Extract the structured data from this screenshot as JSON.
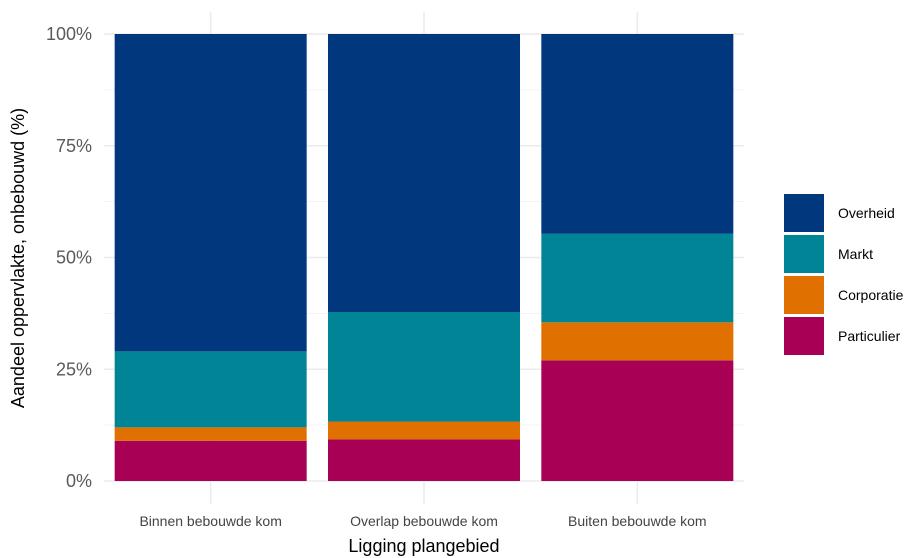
{
  "chart_data": {
    "type": "bar",
    "stacked": true,
    "percent": true,
    "categories": [
      "Binnen bebouwde kom",
      "Overlap bebouwde kom",
      "Buiten bebouwde kom"
    ],
    "series": [
      {
        "name": "Particulier",
        "color": "#a80055",
        "values": [
          9,
          9.3,
          27
        ]
      },
      {
        "name": "Corporatie",
        "color": "#e07000",
        "values": [
          3,
          4,
          8.5
        ]
      },
      {
        "name": "Markt",
        "color": "#008597",
        "values": [
          17,
          24.5,
          19.8
        ]
      },
      {
        "name": "Overheid",
        "color": "#00377d",
        "values": [
          71,
          62.2,
          44.7
        ]
      }
    ],
    "legend_order": [
      "Overheid",
      "Markt",
      "Corporatie",
      "Particulier"
    ],
    "y_ticks": [
      "0%",
      "25%",
      "50%",
      "75%",
      "100%"
    ],
    "y_tick_values": [
      0,
      25,
      50,
      75,
      100
    ],
    "ylim": [
      0,
      100
    ],
    "xlabel": "Ligging plangebied",
    "ylabel": "Aandeel oppervlakte, onbebouwd (%)",
    "legend_position": "right",
    "grid": true
  }
}
